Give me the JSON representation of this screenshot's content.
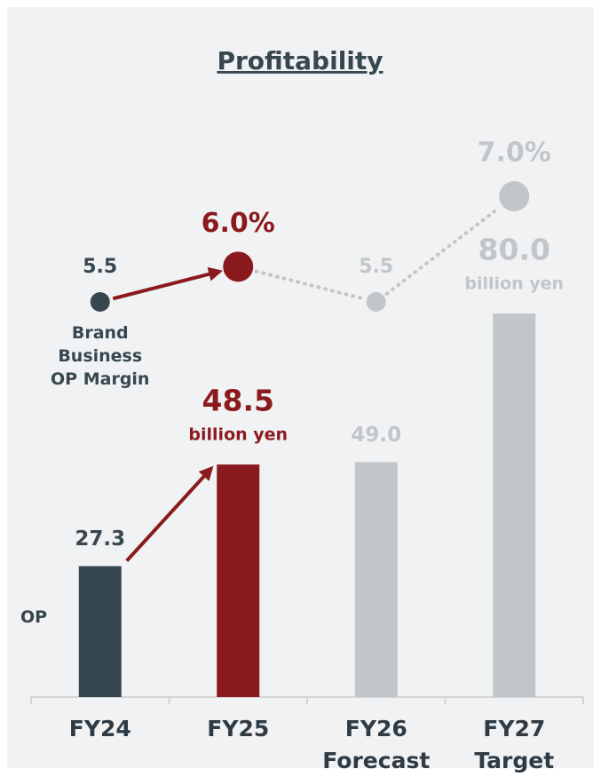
{
  "chart_data": {
    "type": "bar",
    "title": "Profitability",
    "categories": [
      "FY24",
      "FY25",
      "FY26 Forecast",
      "FY27 Target"
    ],
    "series": [
      {
        "name": "OP",
        "colors": [
          "#37474f",
          "#8b1a1e",
          "#c3c6c9",
          "#c3c6c9"
        ],
        "values": [
          27.3,
          48.5,
          49.0,
          80.0
        ],
        "value_labels": [
          "27.3",
          "48.5",
          "49.0",
          "80.0"
        ],
        "value_units": [
          null,
          "billion yen",
          null,
          "billion yen"
        ]
      },
      {
        "name": "Brand Business OP Margin",
        "type": "line",
        "axis": "y2",
        "colors": [
          "#37474f",
          "#8b1a1e",
          "#c3c6c9",
          "#c3c6c9"
        ],
        "values": [
          5.5,
          6.0,
          5.5,
          7.0
        ],
        "value_labels": [
          "5.5",
          "6.0%",
          "5.5",
          "7.0%"
        ]
      }
    ],
    "ylim": [
      0,
      80
    ],
    "y2lim": [
      5.5,
      7.0
    ]
  }
}
